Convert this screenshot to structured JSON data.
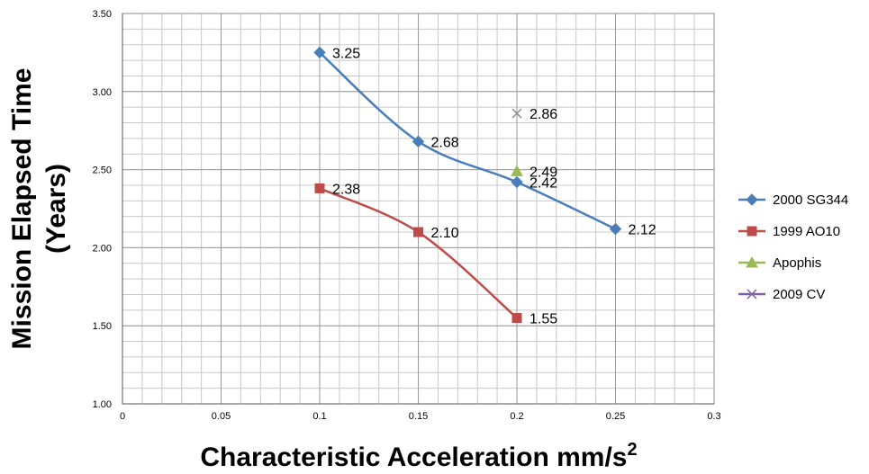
{
  "chart_data": {
    "type": "line",
    "title": "",
    "xlabel": "Characteristic Acceleration mm/s²",
    "ylabel_line1": "Mission Elapsed Time",
    "ylabel_line2": "(Years)",
    "xlim": [
      0,
      0.3
    ],
    "ylim": [
      1.0,
      3.5
    ],
    "x_major_ticks": [
      0,
      0.05,
      0.1,
      0.15,
      0.2,
      0.25,
      0.3
    ],
    "x_tick_labels": [
      "0",
      "0.05",
      "0.1",
      "0.15",
      "0.2",
      "0.25",
      "0.3"
    ],
    "y_major_ticks": [
      1.0,
      1.5,
      2.0,
      2.5,
      3.0,
      3.5
    ],
    "y_tick_labels": [
      "1.00",
      "1.50",
      "2.00",
      "2.50",
      "3.00",
      "3.50"
    ],
    "x_minor_step": 0.01,
    "y_minor_step": 0.1,
    "grid": true,
    "legend_position": "right",
    "series": [
      {
        "name": "2000 SG344",
        "color": "#4a7ebb",
        "marker": "diamond",
        "smooth": true,
        "points": [
          {
            "x": 0.1,
            "y": 3.25,
            "label": "3.25"
          },
          {
            "x": 0.15,
            "y": 2.68,
            "label": "2.68"
          },
          {
            "x": 0.2,
            "y": 2.42,
            "label": "2.42"
          },
          {
            "x": 0.25,
            "y": 2.12,
            "label": "2.12"
          }
        ]
      },
      {
        "name": "1999 AO10",
        "color": "#be4b48",
        "marker": "square",
        "smooth": true,
        "points": [
          {
            "x": 0.1,
            "y": 2.38,
            "label": "2.38"
          },
          {
            "x": 0.15,
            "y": 2.1,
            "label": "2.10"
          },
          {
            "x": 0.2,
            "y": 1.55,
            "label": "1.55"
          }
        ]
      },
      {
        "name": "Apophis",
        "color": "#98b954",
        "marker": "triangle",
        "smooth": false,
        "points": [
          {
            "x": 0.2,
            "y": 2.49,
            "label": "2.49"
          }
        ]
      },
      {
        "name": "2009 CV",
        "color": "#7d60a0",
        "marker": "x",
        "smooth": false,
        "points": [
          {
            "x": 0.2,
            "y": 2.86,
            "label": "2.86"
          }
        ]
      }
    ]
  }
}
